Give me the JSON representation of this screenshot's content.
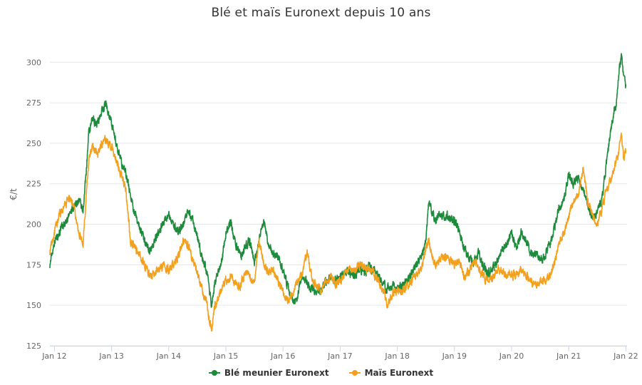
{
  "chart_data": {
    "type": "line",
    "title": "Blé et maïs Euronext depuis 10 ans",
    "ylabel": "€/t",
    "xlabel": "",
    "ylim": [
      125,
      312
    ],
    "xlim": [
      2011.95,
      2022.1
    ],
    "y_ticks": [
      125,
      150,
      175,
      200,
      225,
      250,
      275,
      300
    ],
    "x_ticks": [
      {
        "label": "Jan 12",
        "x": 2012.0
      },
      {
        "label": "Jan 13",
        "x": 2013.0
      },
      {
        "label": "Jan 14",
        "x": 2014.0
      },
      {
        "label": "Jan 15",
        "x": 2015.0
      },
      {
        "label": "Jan 16",
        "x": 2016.0
      },
      {
        "label": "Jan 17",
        "x": 2017.0
      },
      {
        "label": "Jan 18",
        "x": 2018.0
      },
      {
        "label": "Jan 19",
        "x": 2019.0
      },
      {
        "label": "Jan 20",
        "x": 2020.0
      },
      {
        "label": "Jan 21",
        "x": 2021.0
      },
      {
        "label": "Jan 22",
        "x": 2022.0
      }
    ],
    "grid": true,
    "legend_position": "bottom-center",
    "series": [
      {
        "name": "Blé meunier Euronext",
        "color": "#1e8a3c",
        "points": [
          [
            2011.92,
            175
          ],
          [
            2012.0,
            190
          ],
          [
            2012.08,
            195
          ],
          [
            2012.17,
            200
          ],
          [
            2012.25,
            205
          ],
          [
            2012.33,
            210
          ],
          [
            2012.42,
            215
          ],
          [
            2012.5,
            208
          ],
          [
            2012.55,
            230
          ],
          [
            2012.6,
            255
          ],
          [
            2012.67,
            265
          ],
          [
            2012.75,
            262
          ],
          [
            2012.83,
            270
          ],
          [
            2012.9,
            275
          ],
          [
            2013.0,
            262
          ],
          [
            2013.08,
            250
          ],
          [
            2013.17,
            238
          ],
          [
            2013.25,
            232
          ],
          [
            2013.33,
            218
          ],
          [
            2013.42,
            205
          ],
          [
            2013.5,
            198
          ],
          [
            2013.58,
            190
          ],
          [
            2013.67,
            183
          ],
          [
            2013.75,
            190
          ],
          [
            2013.83,
            195
          ],
          [
            2013.92,
            203
          ],
          [
            2014.0,
            206
          ],
          [
            2014.08,
            200
          ],
          [
            2014.17,
            195
          ],
          [
            2014.25,
            200
          ],
          [
            2014.33,
            208
          ],
          [
            2014.42,
            202
          ],
          [
            2014.5,
            192
          ],
          [
            2014.58,
            180
          ],
          [
            2014.67,
            170
          ],
          [
            2014.75,
            150
          ],
          [
            2014.8,
            163
          ],
          [
            2014.92,
            175
          ],
          [
            2015.0,
            195
          ],
          [
            2015.08,
            202
          ],
          [
            2015.17,
            188
          ],
          [
            2015.25,
            180
          ],
          [
            2015.33,
            185
          ],
          [
            2015.42,
            190
          ],
          [
            2015.5,
            177
          ],
          [
            2015.58,
            190
          ],
          [
            2015.67,
            203
          ],
          [
            2015.75,
            187
          ],
          [
            2015.83,
            182
          ],
          [
            2015.92,
            180
          ],
          [
            2016.0,
            170
          ],
          [
            2016.08,
            162
          ],
          [
            2016.17,
            153
          ],
          [
            2016.25,
            155
          ],
          [
            2016.33,
            170
          ],
          [
            2016.42,
            163
          ],
          [
            2016.5,
            160
          ],
          [
            2016.58,
            157
          ],
          [
            2016.67,
            160
          ],
          [
            2016.75,
            165
          ],
          [
            2016.83,
            167
          ],
          [
            2016.92,
            165
          ],
          [
            2017.0,
            168
          ],
          [
            2017.08,
            170
          ],
          [
            2017.17,
            170
          ],
          [
            2017.25,
            168
          ],
          [
            2017.33,
            172
          ],
          [
            2017.42,
            170
          ],
          [
            2017.5,
            174
          ],
          [
            2017.58,
            172
          ],
          [
            2017.67,
            168
          ],
          [
            2017.75,
            163
          ],
          [
            2017.83,
            160
          ],
          [
            2017.92,
            162
          ],
          [
            2018.0,
            160
          ],
          [
            2018.08,
            162
          ],
          [
            2018.17,
            165
          ],
          [
            2018.25,
            170
          ],
          [
            2018.33,
            175
          ],
          [
            2018.42,
            180
          ],
          [
            2018.5,
            190
          ],
          [
            2018.55,
            215
          ],
          [
            2018.6,
            208
          ],
          [
            2018.67,
            203
          ],
          [
            2018.75,
            205
          ],
          [
            2018.83,
            206
          ],
          [
            2018.92,
            204
          ],
          [
            2019.0,
            202
          ],
          [
            2019.08,
            197
          ],
          [
            2019.17,
            185
          ],
          [
            2019.25,
            180
          ],
          [
            2019.33,
            176
          ],
          [
            2019.42,
            182
          ],
          [
            2019.5,
            175
          ],
          [
            2019.58,
            170
          ],
          [
            2019.67,
            172
          ],
          [
            2019.75,
            178
          ],
          [
            2019.83,
            183
          ],
          [
            2019.92,
            188
          ],
          [
            2020.0,
            195
          ],
          [
            2020.08,
            185
          ],
          [
            2020.17,
            195
          ],
          [
            2020.25,
            190
          ],
          [
            2020.33,
            183
          ],
          [
            2020.42,
            182
          ],
          [
            2020.5,
            178
          ],
          [
            2020.58,
            180
          ],
          [
            2020.67,
            188
          ],
          [
            2020.75,
            198
          ],
          [
            2020.83,
            210
          ],
          [
            2020.92,
            215
          ],
          [
            2021.0,
            230
          ],
          [
            2021.08,
            225
          ],
          [
            2021.17,
            228
          ],
          [
            2021.25,
            220
          ],
          [
            2021.33,
            212
          ],
          [
            2021.42,
            203
          ],
          [
            2021.5,
            208
          ],
          [
            2021.58,
            215
          ],
          [
            2021.67,
            240
          ],
          [
            2021.75,
            262
          ],
          [
            2021.83,
            275
          ],
          [
            2021.88,
            295
          ],
          [
            2021.92,
            305
          ],
          [
            2021.96,
            290
          ],
          [
            2022.0,
            285
          ]
        ]
      },
      {
        "name": "Maïs Euronext",
        "color": "#f2a01e",
        "points": [
          [
            2011.92,
            183
          ],
          [
            2012.0,
            195
          ],
          [
            2012.08,
            205
          ],
          [
            2012.17,
            210
          ],
          [
            2012.25,
            216
          ],
          [
            2012.33,
            212
          ],
          [
            2012.42,
            195
          ],
          [
            2012.5,
            188
          ],
          [
            2012.55,
            215
          ],
          [
            2012.6,
            240
          ],
          [
            2012.67,
            248
          ],
          [
            2012.75,
            243
          ],
          [
            2012.83,
            250
          ],
          [
            2012.9,
            252
          ],
          [
            2013.0,
            248
          ],
          [
            2013.08,
            240
          ],
          [
            2013.17,
            230
          ],
          [
            2013.25,
            222
          ],
          [
            2013.33,
            190
          ],
          [
            2013.42,
            185
          ],
          [
            2013.5,
            180
          ],
          [
            2013.58,
            175
          ],
          [
            2013.67,
            168
          ],
          [
            2013.75,
            170
          ],
          [
            2013.83,
            173
          ],
          [
            2013.92,
            175
          ],
          [
            2014.0,
            172
          ],
          [
            2014.08,
            176
          ],
          [
            2014.17,
            180
          ],
          [
            2014.25,
            190
          ],
          [
            2014.33,
            188
          ],
          [
            2014.42,
            178
          ],
          [
            2014.5,
            170
          ],
          [
            2014.58,
            160
          ],
          [
            2014.67,
            150
          ],
          [
            2014.72,
            140
          ],
          [
            2014.75,
            135
          ],
          [
            2014.8,
            148
          ],
          [
            2014.92,
            160
          ],
          [
            2015.0,
            165
          ],
          [
            2015.08,
            168
          ],
          [
            2015.17,
            163
          ],
          [
            2015.25,
            162
          ],
          [
            2015.33,
            170
          ],
          [
            2015.42,
            168
          ],
          [
            2015.5,
            165
          ],
          [
            2015.58,
            190
          ],
          [
            2015.67,
            175
          ],
          [
            2015.75,
            170
          ],
          [
            2015.83,
            172
          ],
          [
            2015.92,
            165
          ],
          [
            2016.0,
            158
          ],
          [
            2016.08,
            152
          ],
          [
            2016.17,
            158
          ],
          [
            2016.25,
            165
          ],
          [
            2016.33,
            168
          ],
          [
            2016.42,
            183
          ],
          [
            2016.5,
            168
          ],
          [
            2016.58,
            162
          ],
          [
            2016.67,
            160
          ],
          [
            2016.75,
            165
          ],
          [
            2016.83,
            168
          ],
          [
            2016.92,
            163
          ],
          [
            2017.0,
            165
          ],
          [
            2017.08,
            170
          ],
          [
            2017.17,
            172
          ],
          [
            2017.25,
            170
          ],
          [
            2017.33,
            175
          ],
          [
            2017.42,
            173
          ],
          [
            2017.5,
            172
          ],
          [
            2017.58,
            170
          ],
          [
            2017.67,
            165
          ],
          [
            2017.75,
            160
          ],
          [
            2017.83,
            150
          ],
          [
            2017.92,
            158
          ],
          [
            2018.0,
            160
          ],
          [
            2018.08,
            158
          ],
          [
            2018.17,
            162
          ],
          [
            2018.25,
            165
          ],
          [
            2018.33,
            170
          ],
          [
            2018.42,
            172
          ],
          [
            2018.5,
            185
          ],
          [
            2018.55,
            190
          ],
          [
            2018.6,
            180
          ],
          [
            2018.67,
            175
          ],
          [
            2018.75,
            178
          ],
          [
            2018.83,
            180
          ],
          [
            2018.92,
            178
          ],
          [
            2019.0,
            175
          ],
          [
            2019.08,
            178
          ],
          [
            2019.17,
            168
          ],
          [
            2019.25,
            170
          ],
          [
            2019.33,
            178
          ],
          [
            2019.42,
            173
          ],
          [
            2019.5,
            168
          ],
          [
            2019.58,
            165
          ],
          [
            2019.67,
            168
          ],
          [
            2019.75,
            172
          ],
          [
            2019.83,
            170
          ],
          [
            2019.92,
            168
          ],
          [
            2020.0,
            170
          ],
          [
            2020.08,
            168
          ],
          [
            2020.17,
            172
          ],
          [
            2020.25,
            168
          ],
          [
            2020.33,
            165
          ],
          [
            2020.42,
            162
          ],
          [
            2020.5,
            165
          ],
          [
            2020.58,
            165
          ],
          [
            2020.67,
            168
          ],
          [
            2020.75,
            175
          ],
          [
            2020.83,
            188
          ],
          [
            2020.92,
            195
          ],
          [
            2021.0,
            205
          ],
          [
            2021.08,
            215
          ],
          [
            2021.17,
            218
          ],
          [
            2021.25,
            235
          ],
          [
            2021.33,
            215
          ],
          [
            2021.42,
            205
          ],
          [
            2021.5,
            200
          ],
          [
            2021.58,
            210
          ],
          [
            2021.67,
            222
          ],
          [
            2021.75,
            228
          ],
          [
            2021.83,
            240
          ],
          [
            2021.88,
            245
          ],
          [
            2021.92,
            255
          ],
          [
            2021.96,
            240
          ],
          [
            2022.0,
            245
          ]
        ]
      }
    ]
  }
}
